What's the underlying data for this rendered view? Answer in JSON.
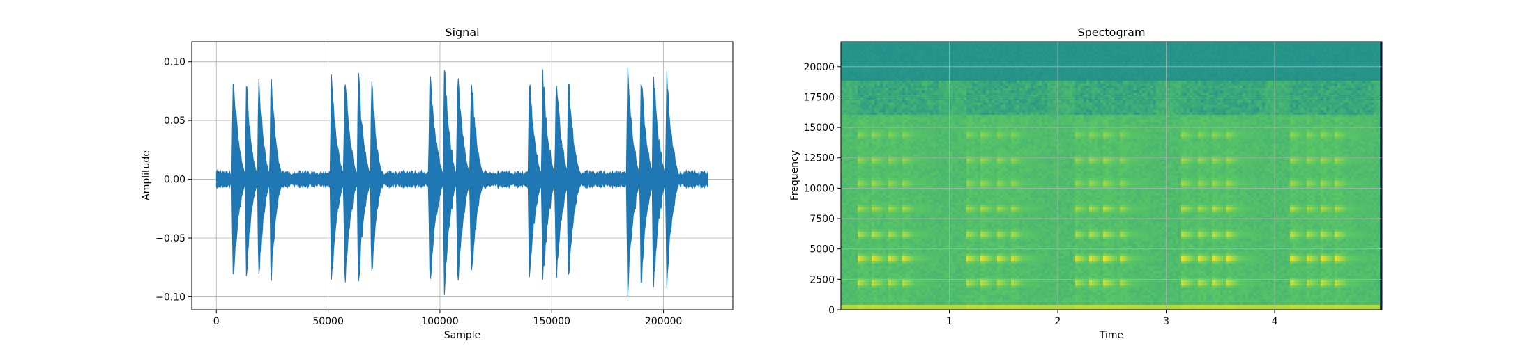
{
  "chart_data": [
    {
      "type": "line",
      "title": "Signal",
      "xlabel": "Sample",
      "ylabel": "Amplitude",
      "xlim": [
        -11000,
        231000
      ],
      "ylim": [
        -0.111,
        0.117
      ],
      "xticks": [
        0,
        50000,
        100000,
        150000,
        200000
      ],
      "xtick_labels": [
        "0",
        "50000",
        "100000",
        "150000",
        "200000"
      ],
      "yticks": [
        -0.1,
        -0.05,
        0.0,
        0.05,
        0.1
      ],
      "ytick_labels": [
        "−0.10",
        "−0.05",
        "0.00",
        "0.05",
        "0.10"
      ],
      "grid": true,
      "color": "#1f77b4",
      "signal_length": 220000,
      "noise_amplitude": 0.006,
      "bursts": [
        {
          "start": 7000,
          "end": 11000,
          "amplitude": 0.1
        },
        {
          "start": 13000,
          "end": 16500,
          "amplitude": 0.097
        },
        {
          "start": 18500,
          "end": 22000,
          "amplitude": 0.099
        },
        {
          "start": 24000,
          "end": 27500,
          "amplitude": 0.101
        },
        {
          "start": 51000,
          "end": 55000,
          "amplitude": 0.098
        },
        {
          "start": 57000,
          "end": 61000,
          "amplitude": 0.102
        },
        {
          "start": 63000,
          "end": 67000,
          "amplitude": 0.101
        },
        {
          "start": 69000,
          "end": 72500,
          "amplitude": 0.099
        },
        {
          "start": 95000,
          "end": 99500,
          "amplitude": 0.101
        },
        {
          "start": 101500,
          "end": 105500,
          "amplitude": 0.105
        },
        {
          "start": 107500,
          "end": 111500,
          "amplitude": 0.104
        },
        {
          "start": 113500,
          "end": 117500,
          "amplitude": 0.102
        },
        {
          "start": 139500,
          "end": 143500,
          "amplitude": 0.098
        },
        {
          "start": 145500,
          "end": 149500,
          "amplitude": 0.101
        },
        {
          "start": 151500,
          "end": 155500,
          "amplitude": 0.1
        },
        {
          "start": 157000,
          "end": 161000,
          "amplitude": 0.096
        },
        {
          "start": 183500,
          "end": 187500,
          "amplitude": 0.106
        },
        {
          "start": 189500,
          "end": 193500,
          "amplitude": 0.099
        },
        {
          "start": 195000,
          "end": 199000,
          "amplitude": 0.103
        },
        {
          "start": 201000,
          "end": 205000,
          "amplitude": 0.097
        }
      ]
    },
    {
      "type": "heatmap",
      "title": "Spectogram",
      "xlabel": "Time",
      "ylabel": "Frequency",
      "xlim": [
        0,
        4.99
      ],
      "ylim": [
        0,
        22050
      ],
      "xticks": [
        1,
        2,
        3,
        4
      ],
      "xtick_labels": [
        "1",
        "2",
        "3",
        "4"
      ],
      "yticks": [
        0,
        2500,
        5000,
        7500,
        10000,
        12500,
        15000,
        17500,
        20000
      ],
      "ytick_labels": [
        "0",
        "2500",
        "5000",
        "7500",
        "10000",
        "12500",
        "15000",
        "17500",
        "20000"
      ],
      "grid": true,
      "colormap": [
        "#440154",
        "#3b528b",
        "#21918c",
        "#5ec962",
        "#fde725"
      ],
      "cutoff_frequency": 18800,
      "harmonics": [
        2200,
        4200,
        6200,
        8300,
        10400,
        12300,
        14400
      ],
      "harmonic_strengths": [
        0.82,
        1.0,
        0.72,
        0.6,
        0.56,
        0.5,
        0.46
      ],
      "tone_groups": [
        {
          "onsets": [
            0.15,
            0.29,
            0.43,
            0.56
          ]
        },
        {
          "onsets": [
            1.15,
            1.29,
            1.43,
            1.56
          ]
        },
        {
          "onsets": [
            2.15,
            2.29,
            2.43,
            2.56
          ]
        },
        {
          "onsets": [
            3.15,
            3.29,
            3.43,
            3.56
          ]
        },
        {
          "onsets": [
            4.15,
            4.29,
            4.43,
            4.56
          ]
        }
      ]
    }
  ]
}
